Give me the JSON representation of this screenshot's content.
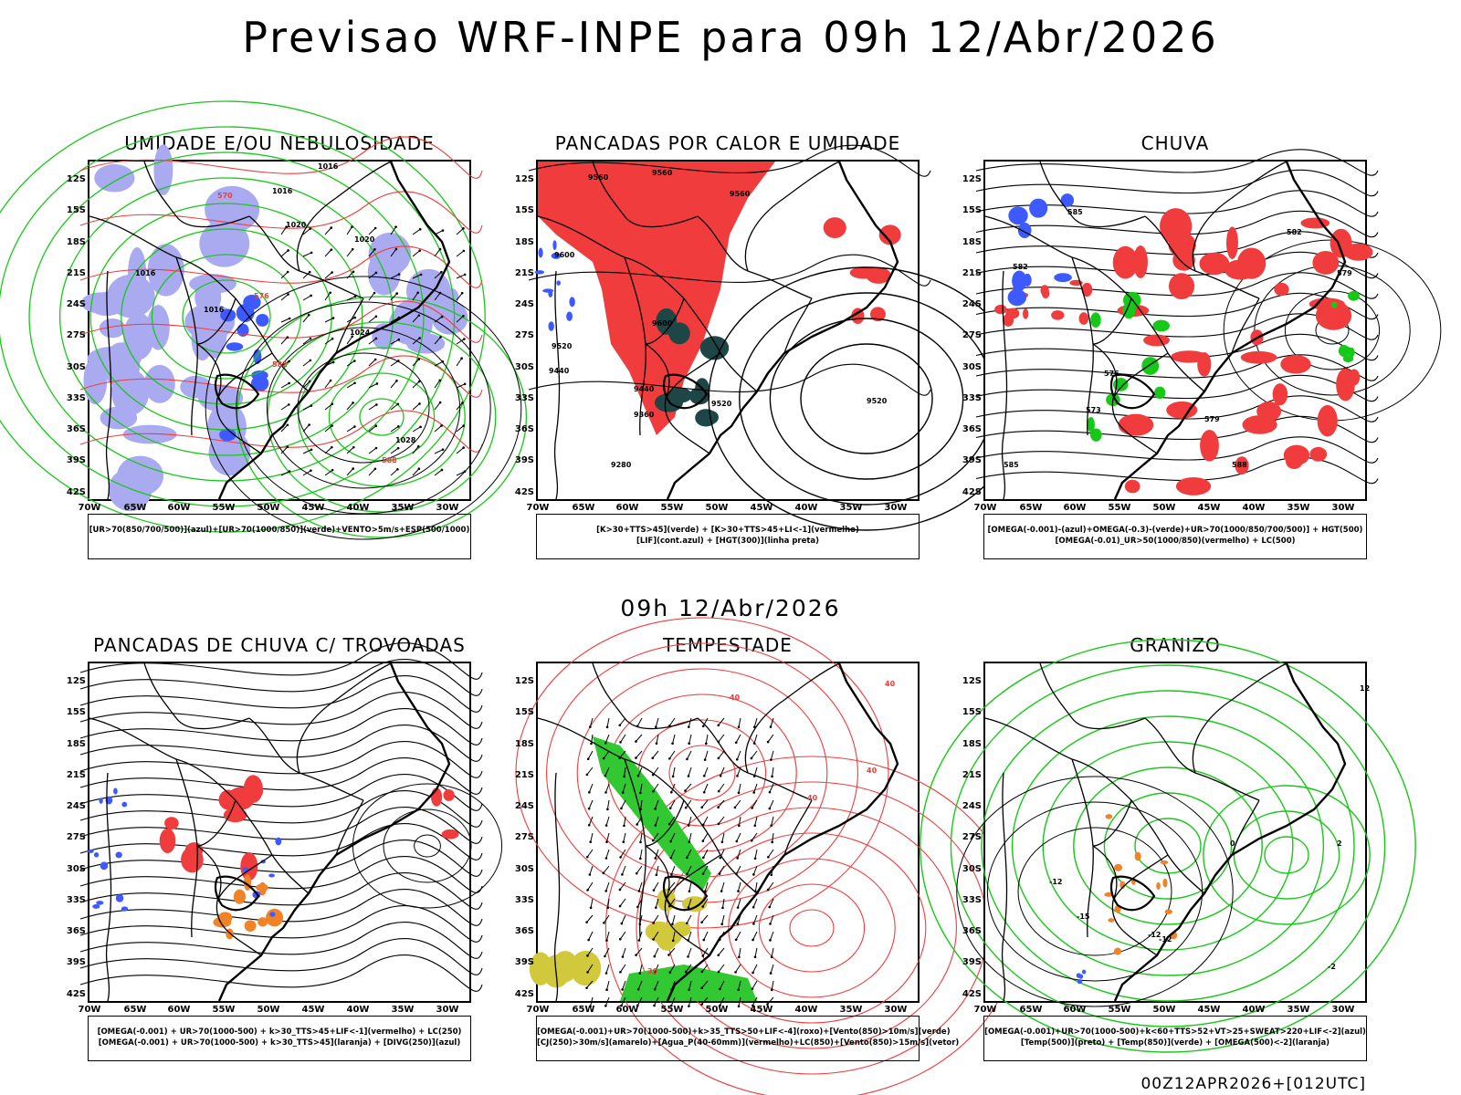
{
  "header": {
    "title": "Previsao WRF-INPE  para 09h 12/Abr/2026"
  },
  "middle_title": "09h 12/Abr/2026",
  "footer": "00Z12APR2026+[012UTC]",
  "axes": {
    "lat_labels": [
      "12S",
      "15S",
      "18S",
      "21S",
      "24S",
      "27S",
      "30S",
      "33S",
      "36S",
      "39S",
      "42S"
    ],
    "lon_labels": [
      "70W",
      "65W",
      "60W",
      "55W",
      "50W",
      "45W",
      "40W",
      "35W",
      "30W"
    ]
  },
  "colors": {
    "red": "#f03c3c",
    "green": "#18c818",
    "blue": "#3c5aff",
    "lavender": "#aaaaf0",
    "darkgreen": "#1e4646",
    "orange": "#f08228",
    "yellow": "#d2c83c",
    "lime": "#32c832"
  },
  "panels": [
    {
      "id": "umidade",
      "title": "UMIDADE E/OU NEBULOSIDADE",
      "legend": [
        "[UR>70(850/700/500)](azul)+[UR>70(1000/850)](verde)+VENTO>5m/s+ESP(500/1000)"
      ],
      "contour_labels": [
        "1016",
        "1016",
        "1020",
        "1020",
        "1016",
        "1016",
        "1024",
        "1028",
        "570",
        "576",
        "582",
        "588"
      ]
    },
    {
      "id": "pancadas-calor",
      "title": "PANCADAS POR CALOR E UMIDADE",
      "legend": [
        "[K>30+TTS>45](verde) + [K>30+TTS>45+LI<-1](vermelho)",
        "[LIF](cont.azul) + [HGT(300)](linha preta)"
      ],
      "contour_labels": [
        "9560",
        "9560",
        "9560",
        "9600",
        "9600",
        "9520",
        "9440",
        "9440",
        "9360",
        "9280",
        "9520",
        "9520"
      ]
    },
    {
      "id": "chuva",
      "title": "CHUVA",
      "legend": [
        "[OMEGA(-0.001)-(azul)+OMEGA(-0.3)-(verde)+UR>70(1000/850/700/500)] + HGT(500)",
        "[OMEGA(-0.01)_UR>50(1000/850)(vermelho) + LC(500)"
      ],
      "contour_labels": [
        "585",
        "582",
        "582",
        "579",
        "576",
        "573",
        "579",
        "585",
        "588"
      ]
    },
    {
      "id": "trovoadas",
      "title": "PANCADAS DE CHUVA C/ TROVOADAS",
      "legend": [
        "[OMEGA(-0.001) + UR>70(1000-500) + k>30_TTS>45+LIF<-1](vermelho) + LC(250)",
        "[OMEGA(-0.001) + UR>70(1000-500) + k>30_TTS>45](laranja) + [DIVG(250)](azul)"
      ],
      "contour_labels": []
    },
    {
      "id": "tempestade",
      "title": "TEMPESTADE",
      "legend": [
        "[OMEGA(-0.001)+UR>70(1000-500)+k>35_TTS>50+LIF<-4](roxo)+[Vento(850)>10m/s](verde)",
        "[CJ(250)>30m/s](amarelo)+[Agua_P(40-60mm)](vermelho)+LC(850)+[Vento(850)>15m/s](vetor)"
      ],
      "contour_labels": [
        "40",
        "40",
        "40",
        "30",
        "40"
      ]
    },
    {
      "id": "granizo",
      "title": "GRANIZO",
      "legend": [
        "[OMEGA(-0.001)+UR>70(1000-500)+k<60+TTS>52+VT>25+SWEAT>220+LIF<-2](azul)",
        "[Temp(500)](preto) + [Temp(850)](verde) + [OMEGA(500)<-2](laranja)"
      ],
      "contour_labels": [
        "-12",
        "-15",
        "-12",
        "-12",
        "0",
        "2",
        "-2",
        "12"
      ]
    }
  ]
}
